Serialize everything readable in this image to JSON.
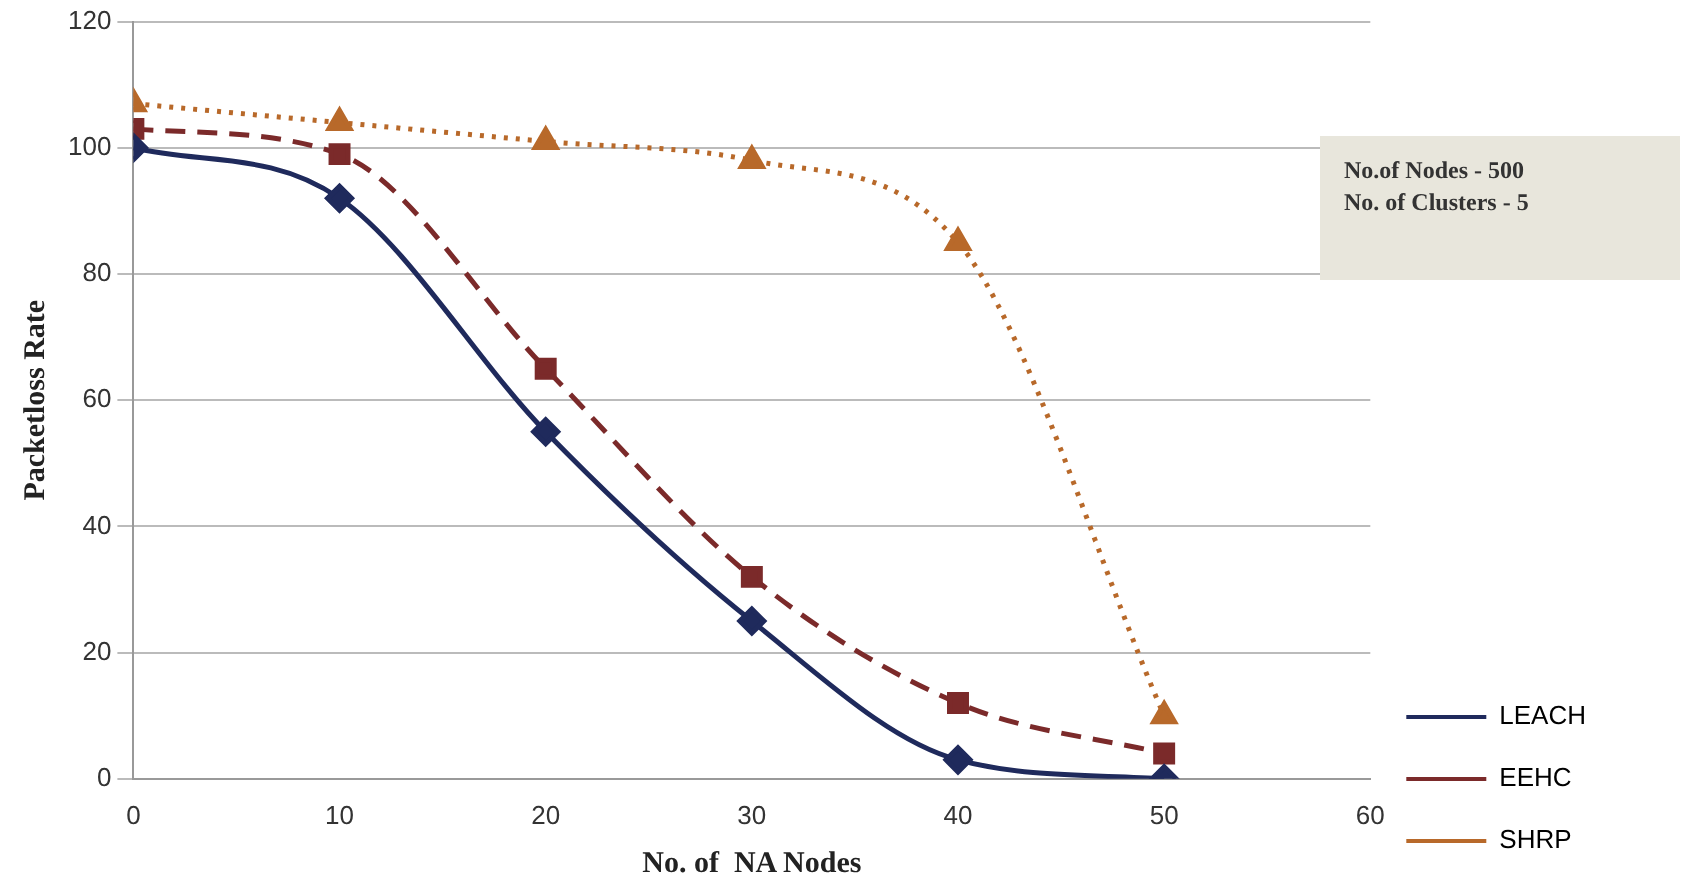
{
  "chart_data": {
    "type": "line",
    "xlabel": "No. of  NA Nodes",
    "ylabel": "Packetloss Rate",
    "x": [
      0,
      10,
      20,
      30,
      40,
      50
    ],
    "series": [
      {
        "name": "LEACH",
        "color": "#1f2a5c",
        "marker": "diamond",
        "line_style": "solid",
        "values": [
          100,
          92,
          55,
          25,
          3,
          0
        ]
      },
      {
        "name": "EEHC",
        "color": "#7b2a2a",
        "marker": "square",
        "line_style": "dashed",
        "values": [
          103,
          99,
          65,
          32,
          12,
          4
        ]
      },
      {
        "name": "SHRP",
        "color": "#b8692a",
        "marker": "triangle",
        "line_style": "dotted",
        "values": [
          107,
          104,
          101,
          98,
          85,
          10
        ]
      }
    ],
    "xlim": [
      0,
      60
    ],
    "xticks": [
      0,
      10,
      20,
      30,
      40,
      50,
      60
    ],
    "ylim": [
      0,
      120
    ],
    "yticks": [
      0,
      20,
      40,
      60,
      80,
      100,
      120
    ],
    "grid": "y",
    "legend": "right",
    "annotations": [
      "No.of Nodes - 500",
      "No. of Clusters - 5"
    ]
  }
}
